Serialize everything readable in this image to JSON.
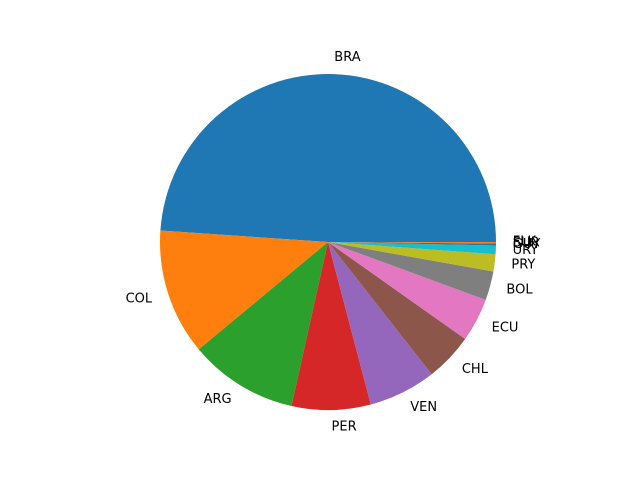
{
  "chart_data": {
    "type": "pie",
    "title": "",
    "categories": [
      "BRA",
      "COL",
      "ARG",
      "PER",
      "VEN",
      "CHL",
      "ECU",
      "BOL",
      "PRY",
      "URY",
      "GUY",
      "SUR",
      "FLK"
    ],
    "values": [
      48.21,
      11.94,
      10.33,
      7.48,
      6.39,
      4.56,
      4.14,
      2.74,
      1.63,
      0.82,
      0.18,
      0.14,
      0.001
    ],
    "colors": [
      "#1f77b4",
      "#ff7f0e",
      "#2ca02c",
      "#d62728",
      "#9467bd",
      "#8c564b",
      "#e377c2",
      "#7f7f7f",
      "#bcbd22",
      "#17becf",
      "#1f77b4",
      "#ff7f0e",
      "#2ca02c"
    ],
    "start_angle_deg": 0,
    "direction": "counterclockwise",
    "legend": "none"
  }
}
